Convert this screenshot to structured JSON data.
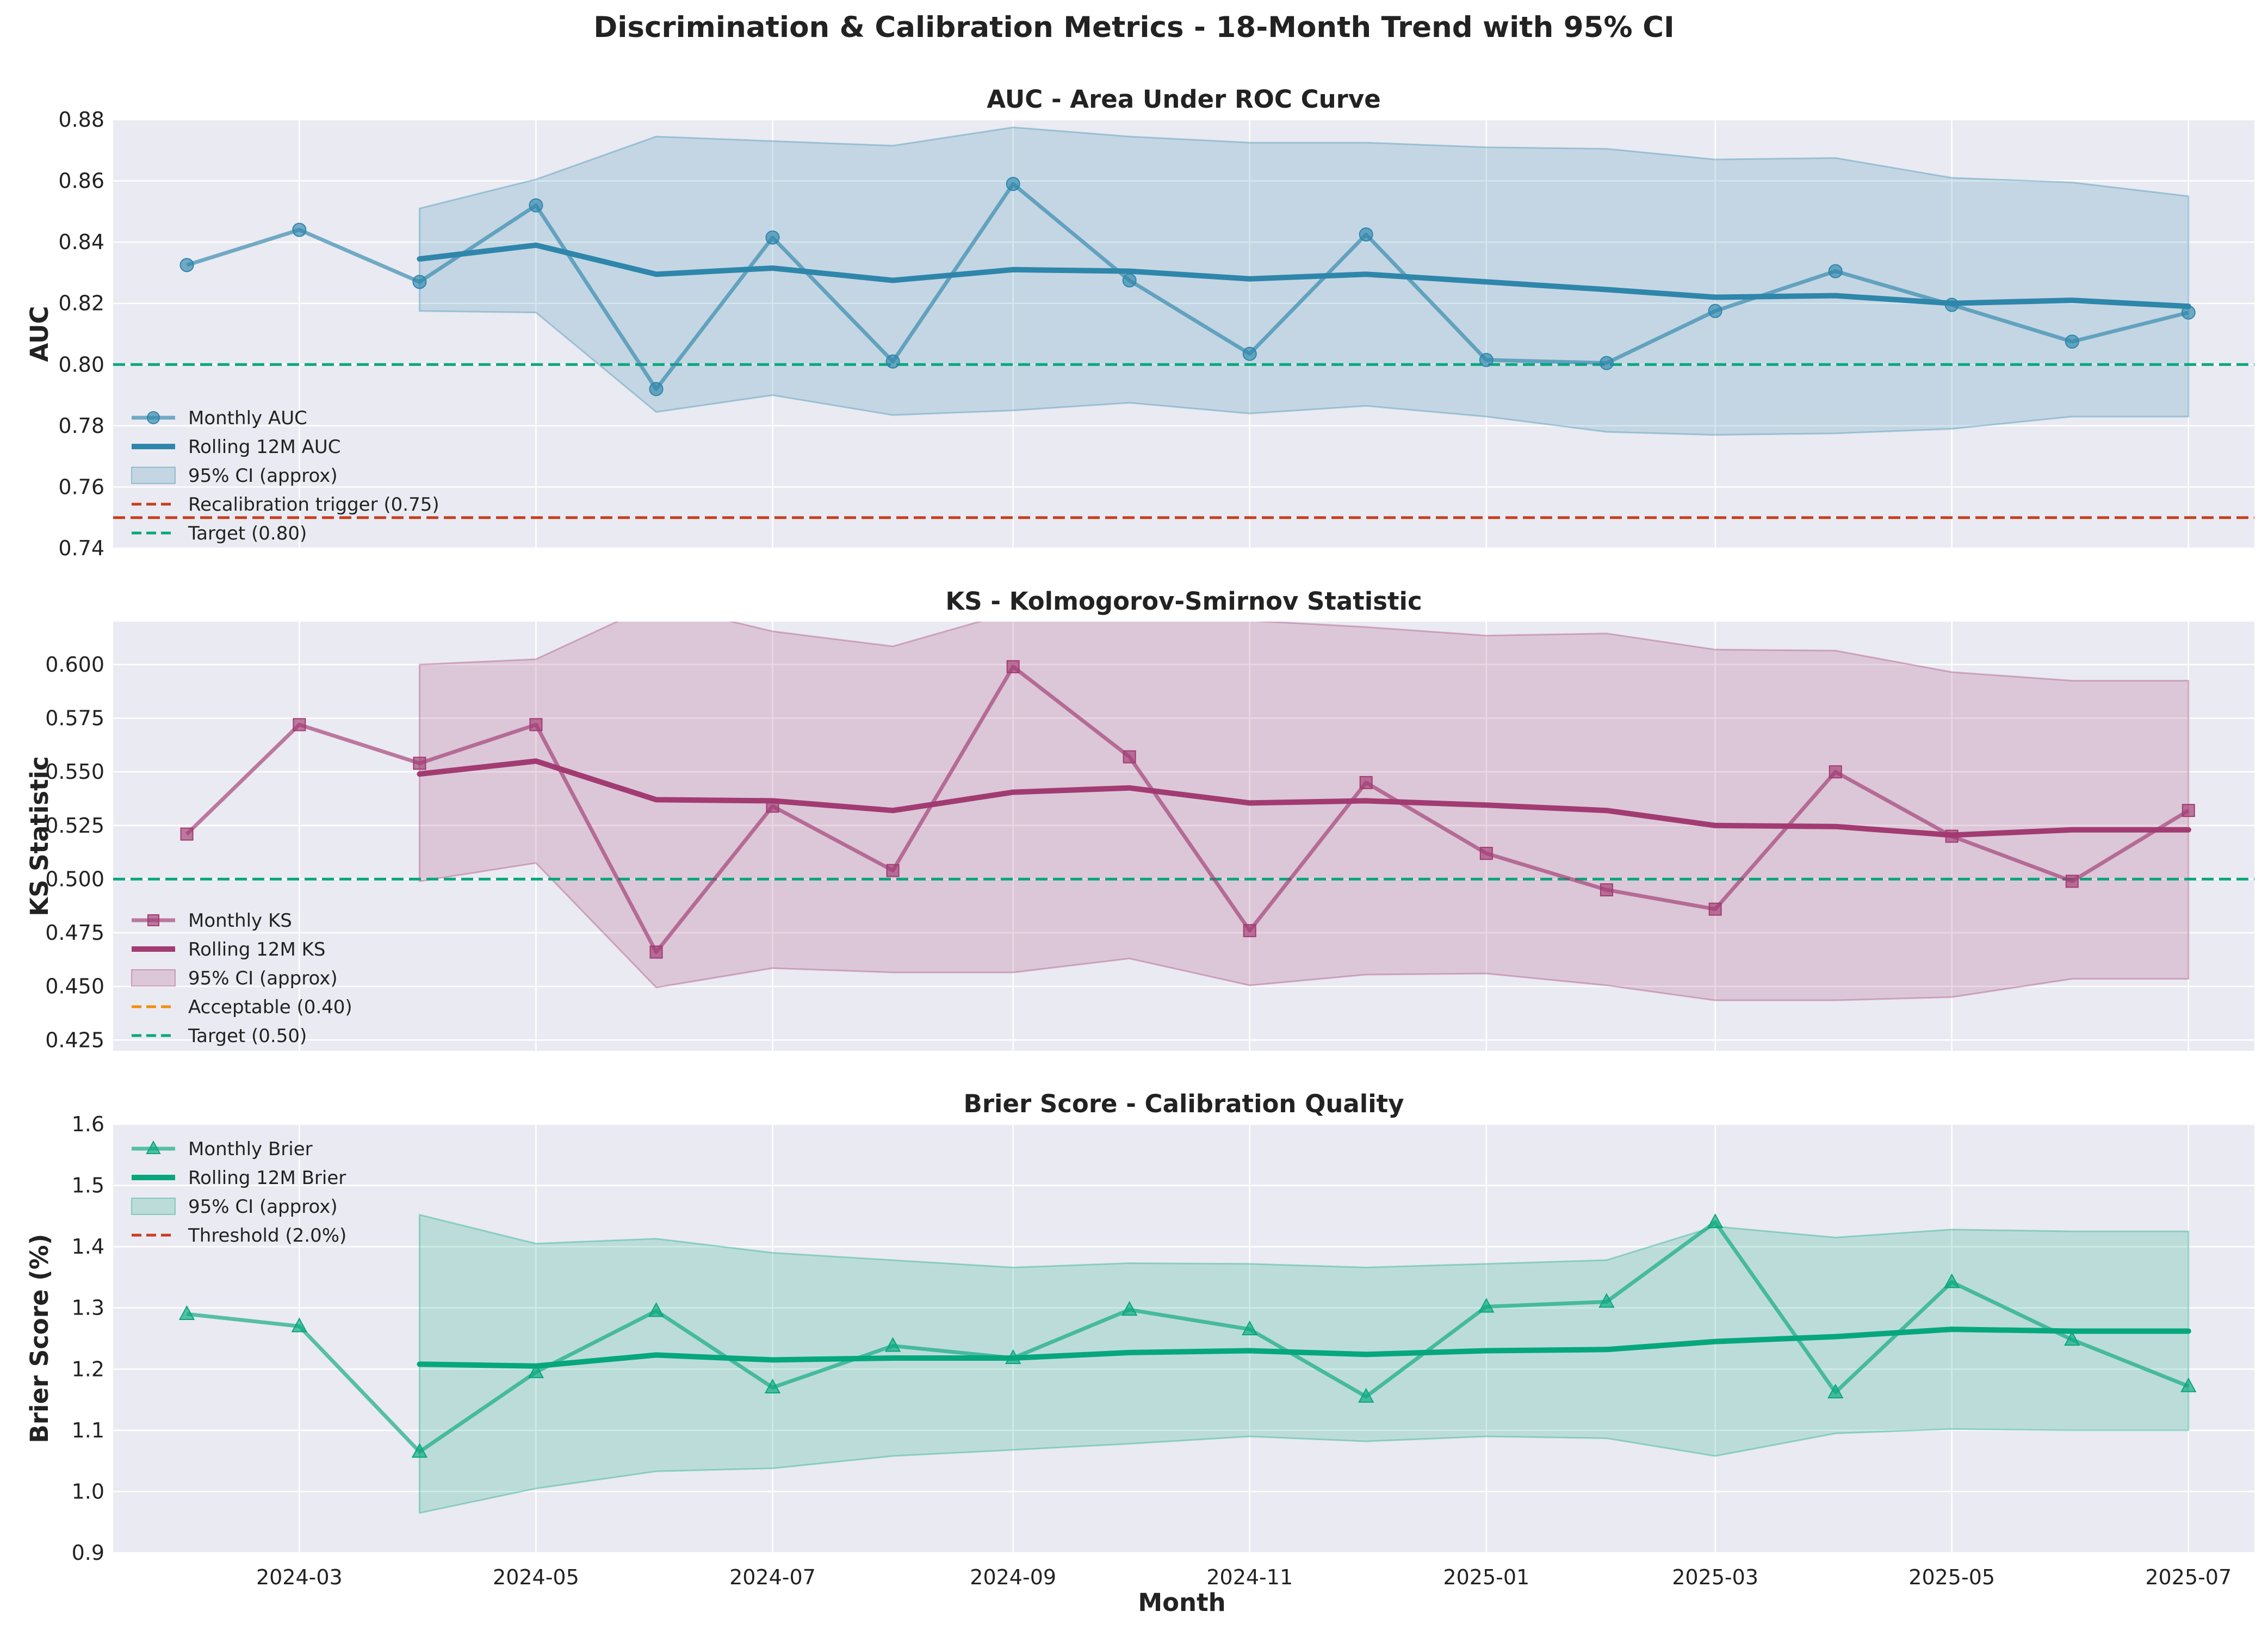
{
  "figure": {
    "title": "Discrimination & Calibration Metrics - 18-Month Trend with 95% CI",
    "xlabel": "Month"
  },
  "chart_data": [
    {
      "type": "line",
      "title": "AUC - Area Under ROC Curve",
      "xlabel": "",
      "ylabel": "AUC",
      "ylim": [
        0.74,
        0.88
      ],
      "yticks": [
        "0.74",
        "0.76",
        "0.78",
        "0.80",
        "0.82",
        "0.84",
        "0.86",
        "0.88"
      ],
      "xlim": [
        "2024-01-13",
        "2025-07-18"
      ],
      "xticks": [
        "2024-03",
        "2024-05",
        "2024-07",
        "2024-09",
        "2024-11",
        "2025-01",
        "2025-03",
        "2025-05",
        "2025-07"
      ],
      "grid": true,
      "legend_position": "lower-left",
      "x": [
        "2024-02-01",
        "2024-03-01",
        "2024-04-01",
        "2024-05-01",
        "2024-06-01",
        "2024-07-01",
        "2024-08-01",
        "2024-09-01",
        "2024-10-01",
        "2024-11-01",
        "2024-12-01",
        "2025-01-01",
        "2025-02-01",
        "2025-03-01",
        "2025-04-01",
        "2025-05-01",
        "2025-06-01",
        "2025-07-01"
      ],
      "series": [
        {
          "name": "Monthly AUC",
          "color": "#2e86ab",
          "marker": "circle",
          "values": [
            0.8325,
            0.844,
            0.827,
            0.852,
            0.792,
            0.8415,
            0.801,
            0.859,
            0.8275,
            0.8035,
            0.8425,
            0.8015,
            0.8005,
            0.8175,
            0.8305,
            0.8195,
            0.8075,
            0.817
          ]
        },
        {
          "name": "Rolling 12M AUC",
          "color": "#2e86ab",
          "values": [
            null,
            null,
            0.8345,
            0.839,
            0.8295,
            0.8315,
            0.8275,
            0.831,
            0.8305,
            0.828,
            0.8295,
            0.827,
            0.8245,
            0.822,
            0.8225,
            0.82,
            0.821,
            0.819
          ]
        }
      ],
      "ci": {
        "name": "95% CI (approx)",
        "color": "#2e86ab",
        "lower": [
          null,
          null,
          0.8175,
          0.817,
          0.7845,
          0.79,
          0.7835,
          0.785,
          0.7875,
          0.784,
          0.7865,
          0.783,
          0.778,
          0.777,
          0.7775,
          0.779,
          0.783,
          0.783
        ],
        "upper": [
          null,
          null,
          0.851,
          0.8605,
          0.8745,
          0.873,
          0.8715,
          0.8775,
          0.8745,
          0.8725,
          0.8725,
          0.871,
          0.8705,
          0.867,
          0.8675,
          0.861,
          0.8595,
          0.855
        ]
      },
      "hlines": [
        {
          "name": "Recalibration trigger (0.75)",
          "value": 0.75,
          "color": "#c73e1d"
        },
        {
          "name": "Target (0.80)",
          "value": 0.8,
          "color": "#06a77d"
        }
      ]
    },
    {
      "type": "line",
      "title": "KS - Kolmogorov-Smirnov Statistic",
      "xlabel": "",
      "ylabel": "KS Statistic",
      "ylim": [
        0.42,
        0.62
      ],
      "yticks": [
        "0.425",
        "0.450",
        "0.475",
        "0.500",
        "0.525",
        "0.550",
        "0.575",
        "0.600"
      ],
      "xlim": [
        "2024-01-13",
        "2025-07-18"
      ],
      "xticks": [
        "2024-03",
        "2024-05",
        "2024-07",
        "2024-09",
        "2024-11",
        "2025-01",
        "2025-03",
        "2025-05",
        "2025-07"
      ],
      "grid": true,
      "legend_position": "lower-left",
      "x": [
        "2024-02-01",
        "2024-03-01",
        "2024-04-01",
        "2024-05-01",
        "2024-06-01",
        "2024-07-01",
        "2024-08-01",
        "2024-09-01",
        "2024-10-01",
        "2024-11-01",
        "2024-12-01",
        "2025-01-01",
        "2025-02-01",
        "2025-03-01",
        "2025-04-01",
        "2025-05-01",
        "2025-06-01",
        "2025-07-01"
      ],
      "series": [
        {
          "name": "Monthly KS",
          "color": "#a23b72",
          "marker": "square",
          "values": [
            0.521,
            0.572,
            0.554,
            0.572,
            0.466,
            0.534,
            0.504,
            0.599,
            0.557,
            0.476,
            0.545,
            0.512,
            0.495,
            0.486,
            0.55,
            0.52,
            0.499,
            0.532
          ]
        },
        {
          "name": "Rolling 12M KS",
          "color": "#a23b72",
          "values": [
            null,
            null,
            0.549,
            0.555,
            0.537,
            0.5365,
            0.532,
            0.5405,
            0.5425,
            0.5355,
            0.5365,
            0.5345,
            0.532,
            0.525,
            0.5245,
            0.5205,
            0.523,
            0.523
          ]
        }
      ],
      "ci": {
        "name": "95% CI (approx)",
        "color": "#a23b72",
        "lower": [
          null,
          null,
          0.499,
          0.5075,
          0.4495,
          0.4585,
          0.4565,
          0.4565,
          0.463,
          0.4505,
          0.4555,
          0.456,
          0.4505,
          0.4435,
          0.4435,
          0.445,
          0.4535,
          0.4535
        ],
        "upper": [
          null,
          null,
          0.6,
          0.6025,
          0.6285,
          0.6155,
          0.6085,
          0.6245,
          0.622,
          0.6205,
          0.6175,
          0.6135,
          0.6145,
          0.607,
          0.6065,
          0.5965,
          0.5925,
          0.5925
        ]
      },
      "hlines": [
        {
          "name": "Acceptable (0.40)",
          "value": 0.4,
          "color": "#f18f01"
        },
        {
          "name": "Target (0.50)",
          "value": 0.5,
          "color": "#06a77d"
        }
      ]
    },
    {
      "type": "line",
      "title": "Brier Score - Calibration Quality",
      "xlabel": "Month",
      "ylabel": "Brier Score (%)",
      "ylim": [
        0.9,
        1.6
      ],
      "yticks": [
        "0.9",
        "1.0",
        "1.1",
        "1.2",
        "1.3",
        "1.4",
        "1.5",
        "1.6"
      ],
      "xlim": [
        "2024-01-13",
        "2025-07-18"
      ],
      "xticks": [
        "2024-03",
        "2024-05",
        "2024-07",
        "2024-09",
        "2024-11",
        "2025-01",
        "2025-03",
        "2025-05",
        "2025-07"
      ],
      "grid": true,
      "legend_position": "upper-left",
      "x": [
        "2024-02-01",
        "2024-03-01",
        "2024-04-01",
        "2024-05-01",
        "2024-06-01",
        "2024-07-01",
        "2024-08-01",
        "2024-09-01",
        "2024-10-01",
        "2024-11-01",
        "2024-12-01",
        "2025-01-01",
        "2025-02-01",
        "2025-03-01",
        "2025-04-01",
        "2025-05-01",
        "2025-06-01",
        "2025-07-01"
      ],
      "series": [
        {
          "name": "Monthly Brier",
          "color": "#06a77d",
          "marker": "triangle",
          "values": [
            1.29,
            1.27,
            1.065,
            1.195,
            1.295,
            1.17,
            1.238,
            1.218,
            1.297,
            1.265,
            1.155,
            1.302,
            1.31,
            1.44,
            1.162,
            1.342,
            1.248,
            1.172
          ]
        },
        {
          "name": "Rolling 12M Brier",
          "color": "#06a77d",
          "values": [
            null,
            null,
            1.208,
            1.205,
            1.223,
            1.215,
            1.218,
            1.218,
            1.227,
            1.23,
            1.224,
            1.23,
            1.232,
            1.245,
            1.253,
            1.265,
            1.262,
            1.262
          ]
        }
      ],
      "ci": {
        "name": "95% CI (approx)",
        "color": "#06a77d",
        "lower": [
          null,
          null,
          0.965,
          1.005,
          1.033,
          1.038,
          1.058,
          1.068,
          1.078,
          1.09,
          1.082,
          1.09,
          1.087,
          1.058,
          1.095,
          1.102,
          1.1,
          1.1
        ],
        "upper": [
          null,
          null,
          1.452,
          1.405,
          1.413,
          1.39,
          1.378,
          1.366,
          1.373,
          1.372,
          1.366,
          1.372,
          1.378,
          1.433,
          1.415,
          1.428,
          1.425,
          1.425
        ]
      },
      "hlines": [
        {
          "name": "Threshold (2.0%)",
          "value": 2.0,
          "color": "#c73e1d"
        }
      ]
    }
  ]
}
